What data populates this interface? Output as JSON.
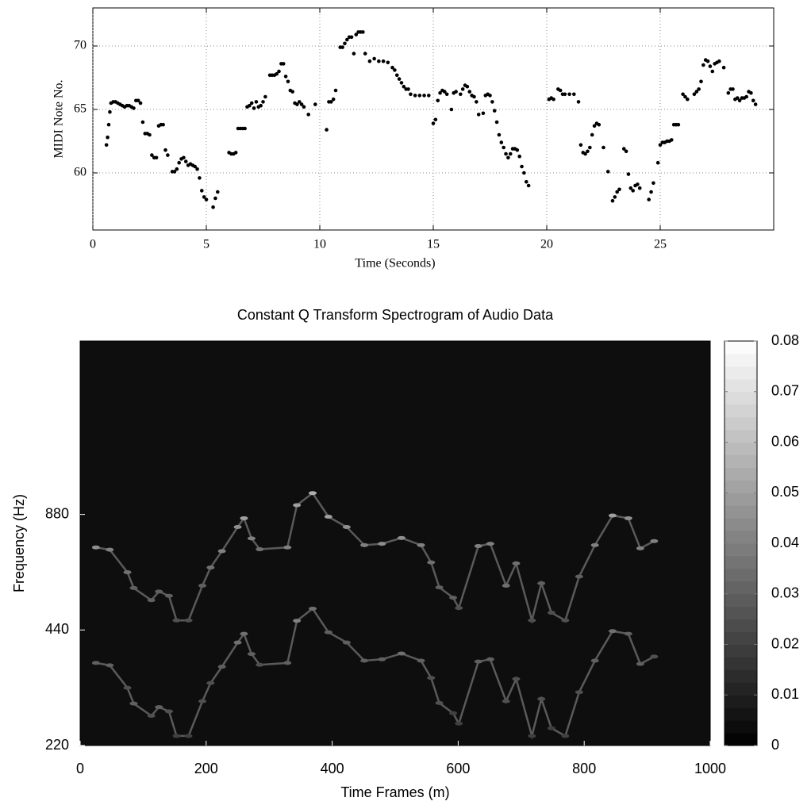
{
  "chart_data": [
    {
      "type": "scatter",
      "xlabel": "Time (Seconds)",
      "ylabel": "MIDI Note No.",
      "color": "#000000",
      "xlim": [
        0,
        30
      ],
      "ylim": [
        55.5,
        73
      ],
      "xticks": [
        0,
        5,
        10,
        15,
        20,
        25
      ],
      "yticks": [
        60,
        65,
        70
      ],
      "grid": true,
      "x": [
        0.6,
        0.65,
        0.7,
        0.75,
        0.8,
        0.9,
        1.0,
        1.1,
        1.2,
        1.3,
        1.4,
        1.5,
        1.6,
        1.7,
        1.8,
        1.9,
        2.0,
        2.1,
        2.2,
        2.3,
        2.4,
        2.5,
        2.6,
        2.7,
        2.8,
        2.9,
        3.0,
        3.1,
        3.2,
        3.3,
        3.5,
        3.6,
        3.7,
        3.8,
        3.9,
        4.0,
        4.1,
        4.2,
        4.3,
        4.4,
        4.5,
        4.6,
        4.7,
        4.8,
        4.9,
        5.0,
        5.3,
        5.4,
        5.5,
        6.0,
        6.1,
        6.2,
        6.3,
        6.4,
        6.5,
        6.6,
        6.7,
        6.8,
        6.9,
        7.0,
        7.1,
        7.2,
        7.3,
        7.4,
        7.5,
        7.6,
        7.8,
        7.9,
        8.0,
        8.1,
        8.2,
        8.3,
        8.4,
        8.5,
        8.6,
        8.7,
        8.8,
        8.9,
        9.0,
        9.1,
        9.2,
        9.3,
        9.5,
        9.8,
        10.3,
        10.4,
        10.5,
        10.6,
        10.7,
        10.9,
        11.0,
        11.1,
        11.2,
        11.3,
        11.4,
        11.5,
        11.6,
        11.7,
        11.8,
        11.9,
        12.0,
        12.2,
        12.4,
        12.6,
        12.8,
        13.0,
        13.2,
        13.3,
        13.4,
        13.5,
        13.6,
        13.7,
        13.8,
        13.9,
        14.0,
        14.2,
        14.4,
        14.6,
        14.8,
        15.0,
        15.1,
        15.2,
        15.3,
        15.4,
        15.5,
        15.6,
        15.8,
        15.9,
        16.0,
        16.2,
        16.3,
        16.4,
        16.5,
        16.6,
        16.7,
        16.8,
        16.9,
        17.0,
        17.2,
        17.3,
        17.4,
        17.5,
        17.6,
        17.7,
        17.8,
        17.9,
        18.0,
        18.1,
        18.2,
        18.3,
        18.4,
        18.5,
        18.6,
        18.7,
        18.8,
        18.9,
        19.0,
        19.1,
        19.2,
        20.1,
        20.2,
        20.3,
        20.5,
        20.6,
        20.7,
        20.8,
        21.0,
        21.2,
        21.4,
        21.5,
        21.6,
        21.7,
        21.8,
        21.9,
        22.0,
        22.1,
        22.2,
        22.3,
        22.5,
        22.7,
        22.9,
        23.0,
        23.1,
        23.2,
        23.4,
        23.5,
        23.6,
        23.7,
        23.8,
        23.9,
        24.0,
        24.1,
        24.5,
        24.6,
        24.7,
        24.9,
        25.0,
        25.1,
        25.2,
        25.3,
        25.4,
        25.5,
        25.6,
        25.7,
        25.8,
        26.0,
        26.1,
        26.2,
        26.5,
        26.6,
        26.7,
        26.8,
        26.9,
        27.0,
        27.1,
        27.2,
        27.3,
        27.4,
        27.5,
        27.6,
        27.8,
        28.0,
        28.1,
        28.2,
        28.3,
        28.4,
        28.5,
        28.6,
        28.7,
        28.8,
        28.9,
        29.0,
        29.1,
        29.2
      ],
      "values": [
        62.2,
        62.8,
        63.8,
        64.8,
        65.5,
        65.6,
        65.6,
        65.5,
        65.4,
        65.3,
        65.2,
        65.3,
        65.3,
        65.2,
        65.1,
        65.7,
        65.7,
        65.5,
        64.0,
        63.1,
        63.1,
        63.0,
        61.4,
        61.2,
        61.2,
        63.7,
        63.8,
        63.8,
        61.8,
        61.4,
        60.1,
        60.1,
        60.3,
        60.8,
        61.1,
        61.2,
        60.9,
        60.6,
        60.7,
        60.6,
        60.5,
        60.3,
        59.6,
        58.6,
        58.1,
        57.9,
        57.3,
        58.0,
        58.5,
        61.6,
        61.5,
        61.5,
        61.6,
        63.5,
        63.5,
        63.5,
        63.5,
        65.2,
        65.3,
        65.5,
        65.1,
        65.6,
        65.2,
        65.3,
        65.6,
        66.0,
        67.7,
        67.7,
        67.7,
        67.8,
        68.0,
        68.6,
        68.6,
        67.6,
        67.2,
        66.5,
        66.4,
        65.5,
        65.4,
        65.6,
        65.4,
        65.2,
        64.6,
        65.4,
        63.4,
        65.6,
        65.6,
        65.8,
        66.5,
        69.9,
        69.9,
        70.2,
        70.5,
        70.7,
        70.7,
        69.4,
        70.9,
        71.1,
        71.1,
        71.1,
        69.4,
        68.8,
        69.0,
        68.8,
        68.8,
        68.7,
        68.3,
        68.1,
        67.7,
        67.4,
        67.1,
        66.8,
        66.6,
        66.6,
        66.2,
        66.1,
        66.1,
        66.1,
        66.1,
        63.9,
        64.2,
        65.7,
        66.3,
        66.5,
        66.4,
        66.2,
        65.0,
        66.3,
        66.4,
        66.2,
        66.6,
        66.9,
        66.8,
        66.4,
        66.1,
        66.0,
        65.6,
        64.6,
        64.7,
        66.1,
        66.2,
        66.1,
        65.6,
        64.9,
        64.0,
        63.0,
        62.4,
        62.0,
        61.5,
        61.2,
        61.5,
        61.9,
        61.9,
        61.8,
        61.3,
        60.5,
        60.0,
        59.3,
        59.0,
        65.8,
        65.9,
        65.8,
        66.6,
        66.5,
        66.2,
        66.2,
        66.2,
        66.2,
        65.6,
        62.2,
        61.6,
        61.5,
        61.7,
        62.0,
        63.0,
        63.7,
        63.9,
        63.8,
        62.0,
        60.1,
        57.8,
        58.1,
        58.5,
        58.7,
        61.9,
        61.7,
        59.9,
        58.8,
        58.6,
        59.0,
        59.1,
        58.8,
        57.9,
        58.5,
        59.2,
        60.8,
        62.2,
        62.4,
        62.4,
        62.5,
        62.5,
        62.6,
        63.8,
        63.8,
        63.8,
        66.2,
        66.0,
        65.8,
        66.2,
        66.4,
        66.6,
        67.2,
        68.5,
        68.9,
        68.8,
        68.4,
        68.0,
        68.6,
        68.7,
        68.8,
        68.3,
        66.3,
        66.6,
        66.6,
        65.8,
        65.9,
        65.7,
        65.9,
        65.9,
        66.0,
        66.4,
        66.3,
        65.7,
        65.4
      ]
    },
    {
      "type": "heatmap",
      "title": "Constant Q Transform Spectrogram of Audio Data",
      "xlabel": "Time Frames (m)",
      "ylabel": "Frequency (Hz)",
      "xlim": [
        0,
        1000
      ],
      "ylim": [
        220,
        2490
      ],
      "yscale": "log",
      "xticks": [
        0,
        200,
        400,
        600,
        800,
        1000
      ],
      "yticks": [
        220,
        440,
        880
      ],
      "colormap": "gray",
      "clim": [
        0,
        0.08
      ],
      "cticks": [
        0,
        0.01,
        0.02,
        0.03,
        0.04,
        0.05,
        0.06,
        0.07,
        0.08
      ],
      "ridges": [
        {
          "x": [
            25,
            47,
            75,
            85,
            113,
            125,
            141,
            153,
            172,
            194,
            207,
            225,
            250,
            260,
            272,
            285,
            329,
            344,
            369,
            394,
            423,
            451,
            479,
            510,
            541,
            557,
            570,
            592,
            601,
            632,
            651,
            676,
            692,
            717,
            732,
            748,
            770,
            792,
            817,
            845,
            870,
            889,
            911
          ],
          "y": [
            361,
            356,
            311,
            283,
            263,
            277,
            270,
            233,
            233,
            287,
            320,
            353,
            408,
            430,
            381,
            357,
            361,
            465,
            500,
            434,
            408,
            366,
            369,
            382,
            366,
            330,
            284,
            267,
            251,
            364,
            369,
            287,
            328,
            233,
            291,
            244,
            233,
            303,
            366,
            437,
            430,
            359,
            375
          ],
          "values": [
            0.03,
            0.03,
            0.025,
            0.03,
            0.025,
            0.03,
            0.025,
            0.02,
            0.02,
            0.025,
            0.025,
            0.03,
            0.035,
            0.035,
            0.03,
            0.025,
            0.03,
            0.04,
            0.035,
            0.03,
            0.03,
            0.03,
            0.03,
            0.035,
            0.03,
            0.025,
            0.025,
            0.02,
            0.02,
            0.03,
            0.03,
            0.025,
            0.025,
            0.02,
            0.025,
            0.02,
            0.02,
            0.025,
            0.03,
            0.035,
            0.03,
            0.03,
            0.025
          ]
        },
        {
          "x": [
            25,
            47,
            75,
            85,
            113,
            125,
            141,
            153,
            172,
            194,
            207,
            225,
            250,
            260,
            272,
            285,
            329,
            344,
            369,
            394,
            423,
            451,
            479,
            510,
            541,
            557,
            570,
            592,
            601,
            632,
            651,
            676,
            692,
            717,
            732,
            748,
            770,
            792,
            817,
            845,
            870,
            889,
            911
          ],
          "y": [
            722,
            712,
            622,
            566,
            526,
            554,
            540,
            466,
            466,
            574,
            640,
            706,
            816,
            860,
            762,
            714,
            722,
            930,
            1000,
            868,
            816,
            732,
            738,
            764,
            732,
            660,
            568,
            534,
            502,
            728,
            738,
            574,
            656,
            466,
            582,
            488,
            466,
            606,
            732,
            874,
            860,
            718,
            750
          ],
          "values": [
            0.045,
            0.04,
            0.035,
            0.03,
            0.03,
            0.03,
            0.03,
            0.025,
            0.025,
            0.03,
            0.035,
            0.04,
            0.045,
            0.05,
            0.04,
            0.035,
            0.04,
            0.05,
            0.055,
            0.05,
            0.045,
            0.04,
            0.045,
            0.045,
            0.04,
            0.035,
            0.03,
            0.03,
            0.025,
            0.04,
            0.04,
            0.035,
            0.035,
            0.025,
            0.03,
            0.025,
            0.025,
            0.03,
            0.04,
            0.05,
            0.045,
            0.04,
            0.04
          ]
        }
      ]
    }
  ]
}
